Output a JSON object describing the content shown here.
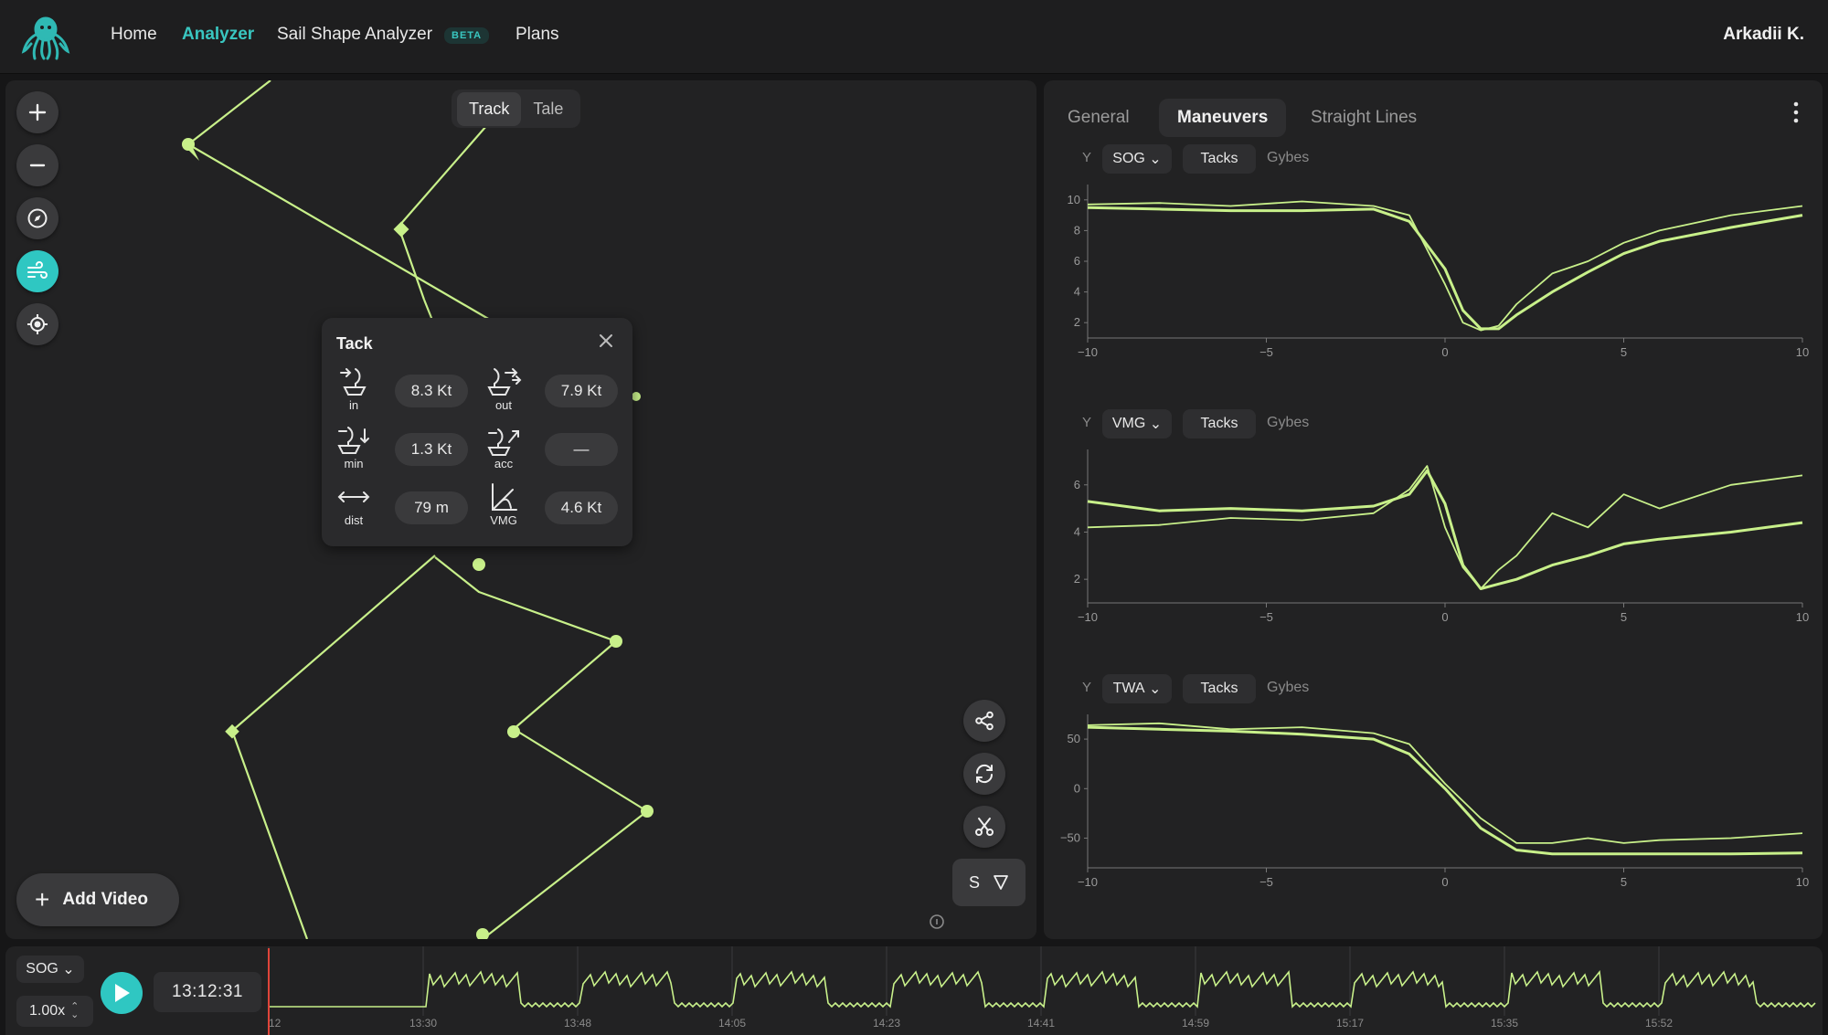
{
  "nav": {
    "items": [
      "Home",
      "Analyzer",
      "Sail Shape Analyzer",
      "Plans"
    ],
    "active": "Analyzer",
    "beta_badge": "BETA",
    "user": "Arkadii K."
  },
  "map": {
    "view_toggle": [
      "Track",
      "Tale"
    ],
    "view_active": "Track",
    "add_video_label": "Add Video",
    "filter_label": "S",
    "tack_popup": {
      "title": "Tack",
      "stats": [
        {
          "icon": "speed-in-icon",
          "label": "in",
          "value": "8.3 Kt"
        },
        {
          "icon": "speed-out-icon",
          "label": "out",
          "value": "7.9 Kt"
        },
        {
          "icon": "speed-min-icon",
          "label": "min",
          "value": "1.3 Kt"
        },
        {
          "icon": "acceleration-icon",
          "label": "acc",
          "value": "—"
        },
        {
          "icon": "distance-icon",
          "label": "dist",
          "value": "79 m"
        },
        {
          "icon": "vmg-icon",
          "label": "VMG",
          "value": "4.6 Kt"
        }
      ]
    }
  },
  "analysis": {
    "tabs": [
      "General",
      "Maneuvers",
      "Straight Lines"
    ],
    "active_tab": "Maneuvers",
    "y_label": "Y",
    "tacks_label": "Tacks",
    "gybes_label": "Gybes"
  },
  "chart_data": [
    {
      "type": "line",
      "metric": "SOG",
      "x": [
        -10,
        -8,
        -6,
        -4,
        -2,
        -1,
        0,
        0.5,
        1,
        1.5,
        2,
        3,
        4,
        5,
        6,
        8,
        10
      ],
      "xlim": [
        -10,
        10
      ],
      "ylim": [
        1,
        11
      ],
      "xticks": [
        "−10",
        "−5",
        "0",
        "5",
        "10"
      ],
      "yticks": [
        "2",
        "4",
        "6",
        "8",
        "10"
      ],
      "series": [
        {
          "values": [
            9.5,
            9.4,
            9.3,
            9.3,
            9.4,
            8.6,
            5.5,
            2.8,
            1.6,
            1.6,
            2.5,
            4.0,
            5.3,
            6.5,
            7.3,
            8.2,
            9.0
          ]
        },
        {
          "values": [
            9.7,
            9.8,
            9.6,
            9.9,
            9.6,
            9.0,
            4.5,
            2.0,
            1.5,
            1.8,
            3.2,
            5.2,
            6.0,
            7.2,
            8.0,
            9.0,
            9.6
          ]
        }
      ]
    },
    {
      "type": "line",
      "metric": "VMG",
      "x": [
        -10,
        -8,
        -6,
        -4,
        -2,
        -1,
        -0.5,
        0,
        0.5,
        1,
        1.5,
        2,
        3,
        4,
        5,
        6,
        8,
        10
      ],
      "xlim": [
        -10,
        10
      ],
      "ylim": [
        1,
        7.5
      ],
      "xticks": [
        "−10",
        "−5",
        "0",
        "5",
        "10"
      ],
      "yticks": [
        "2",
        "4",
        "6"
      ],
      "series": [
        {
          "values": [
            5.3,
            4.9,
            5.0,
            4.9,
            5.1,
            5.6,
            6.6,
            5.2,
            2.6,
            1.6,
            1.8,
            2.0,
            2.6,
            3.0,
            3.5,
            3.7,
            4.0,
            4.4
          ]
        },
        {
          "values": [
            4.2,
            4.3,
            4.6,
            4.5,
            4.8,
            5.8,
            6.8,
            4.2,
            2.5,
            1.6,
            2.4,
            3.0,
            4.8,
            4.2,
            5.6,
            5.0,
            6.0,
            6.4
          ]
        }
      ]
    },
    {
      "type": "line",
      "metric": "TWA",
      "x": [
        -10,
        -8,
        -6,
        -4,
        -2,
        -1,
        0,
        1,
        2,
        3,
        4,
        5,
        6,
        8,
        10
      ],
      "xlim": [
        -10,
        10
      ],
      "ylim": [
        -80,
        75
      ],
      "xticks": [
        "−10",
        "−5",
        "0",
        "5",
        "10"
      ],
      "yticks": [
        "50",
        "0",
        "−50"
      ],
      "series": [
        {
          "values": [
            62,
            60,
            58,
            55,
            50,
            35,
            0,
            -40,
            -62,
            -66,
            -66,
            -66,
            -66,
            -66,
            -65
          ]
        },
        {
          "values": [
            64,
            66,
            60,
            62,
            56,
            45,
            5,
            -30,
            -55,
            -55,
            -50,
            -55,
            -52,
            -50,
            -45
          ]
        }
      ]
    }
  ],
  "timeline": {
    "metric": "SOG",
    "speed": "1.00x",
    "current_time": "13:12:31",
    "ticks": [
      "12",
      "13:30",
      "13:48",
      "14:05",
      "14:23",
      "14:41",
      "14:59",
      "15:17",
      "15:35",
      "15:52"
    ]
  },
  "colors": {
    "accent": "#2fc7c2",
    "track": "#c8f08a",
    "panel": "#222223",
    "background": "#161617"
  }
}
